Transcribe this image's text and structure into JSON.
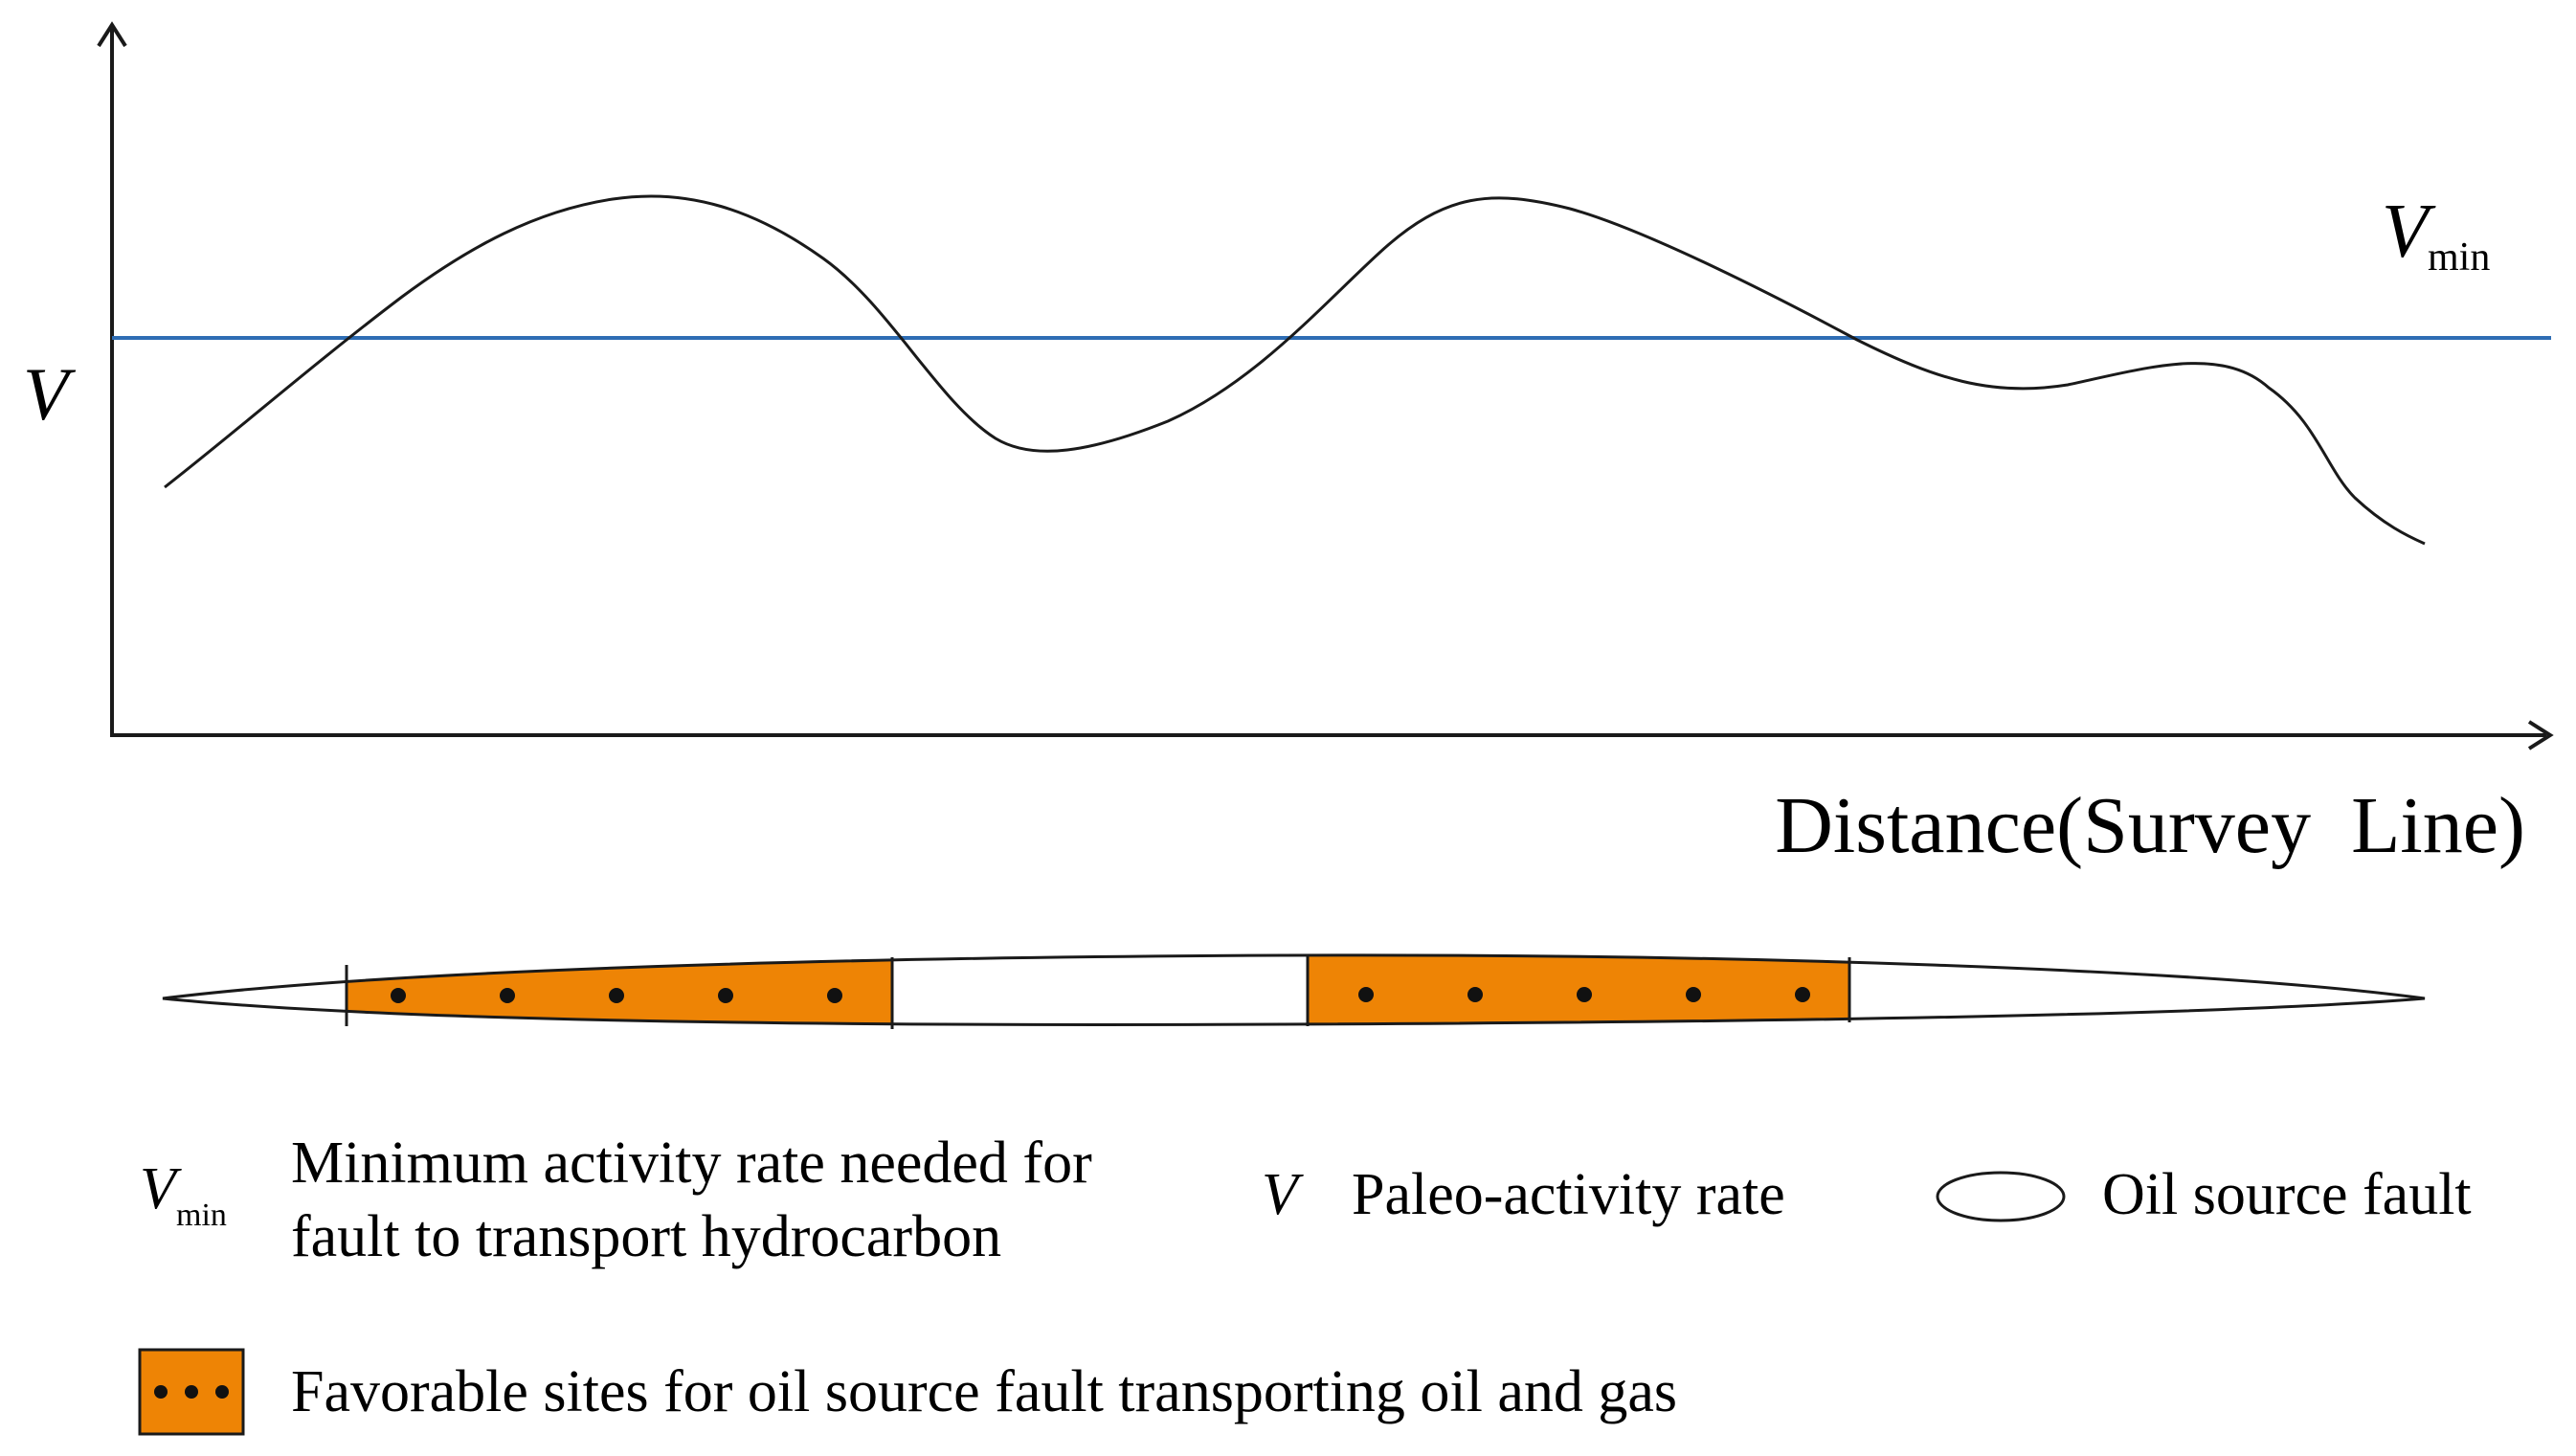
{
  "chart": {
    "y_axis_label": "V",
    "x_axis_label": "Distance(Survey  Line)",
    "threshold_label_main": "V",
    "threshold_label_sub": "min"
  },
  "legend": {
    "vmin_symbol_main": "V",
    "vmin_symbol_sub": "min",
    "vmin_desc_line1": "Minimum activity rate needed for",
    "vmin_desc_line2": "fault to transport hydrocarbon",
    "v_symbol": "V",
    "v_desc": "Paleo-activity rate",
    "fault_desc": "Oil source fault",
    "favorable_desc": "Favorable sites for oil source fault transporting oil and gas"
  },
  "colors": {
    "curve": "#1a1a1a",
    "threshold_line": "#2e6db4",
    "favorable_fill": "#ee8405",
    "axis": "#1a1a1a"
  }
}
